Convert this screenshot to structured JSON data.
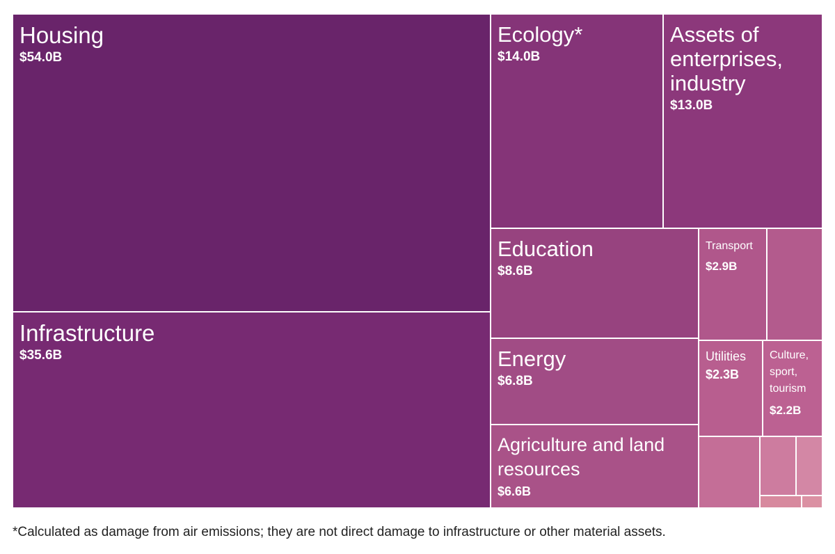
{
  "chart_data": {
    "type": "treemap",
    "unit": "$B",
    "items": [
      {
        "label": "Housing",
        "value": 54.0,
        "value_label": "$54.0B",
        "color": "#69246a"
      },
      {
        "label": "Infrastructure",
        "value": 35.6,
        "value_label": "$35.6B",
        "color": "#772a72"
      },
      {
        "label": "Ecology*",
        "value": 14.0,
        "value_label": "$14.0B",
        "color": "#853478"
      },
      {
        "label": "Assets of enterprises, industry",
        "value": 13.0,
        "value_label": "$13.0B",
        "color": "#8c387b"
      },
      {
        "label": "Education",
        "value": 8.6,
        "value_label": "$8.6B",
        "color": "#97437f"
      },
      {
        "label": "Energy",
        "value": 6.8,
        "value_label": "$6.8B",
        "color": "#a14c85"
      },
      {
        "label": "Agriculture and land resources",
        "value": 6.6,
        "value_label": "$6.6B",
        "color": "#a95288"
      },
      {
        "label": "Transport",
        "value": 2.9,
        "value_label": "$2.9B",
        "color": "#b0578b"
      },
      {
        "label": "",
        "value": null,
        "value_label": "",
        "color": "#b35b8d"
      },
      {
        "label": "Utilities",
        "value": 2.3,
        "value_label": "$2.3B",
        "color": "#b85e8f"
      },
      {
        "label": "Culture, sport, tourism",
        "value": 2.2,
        "value_label": "$2.2B",
        "color": "#bc6192"
      },
      {
        "label": "",
        "value": null,
        "value_label": "",
        "color": "#c46e97"
      },
      {
        "label": "",
        "value": null,
        "value_label": "",
        "color": "#cd7c9f"
      },
      {
        "label": "",
        "value": null,
        "value_label": "",
        "color": "#d387a5"
      },
      {
        "label": "",
        "value": null,
        "value_label": "",
        "color": "#d7899e"
      },
      {
        "label": "",
        "value": null,
        "value_label": "",
        "color": "#db91a3"
      }
    ]
  },
  "footnote": "*Calculated as damage from air emissions; they are not direct damage to infrastructure or other material assets."
}
